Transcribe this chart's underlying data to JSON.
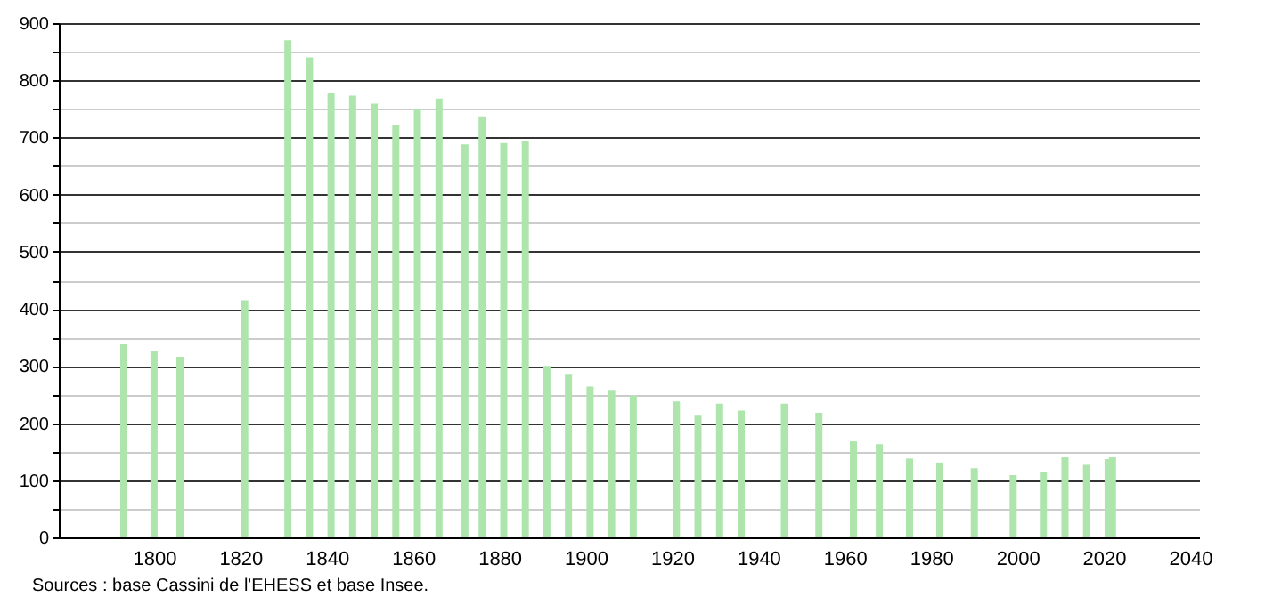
{
  "chart_data": {
    "type": "bar",
    "x": [
      1793,
      1800,
      1806,
      1821,
      1831,
      1836,
      1841,
      1846,
      1851,
      1856,
      1861,
      1866,
      1872,
      1876,
      1881,
      1886,
      1891,
      1896,
      1901,
      1906,
      1911,
      1921,
      1926,
      1931,
      1936,
      1946,
      1954,
      1962,
      1968,
      1975,
      1982,
      1990,
      1999,
      2006,
      2011,
      2016,
      2021,
      2022
    ],
    "values": [
      338,
      327,
      316,
      415,
      870,
      840,
      778,
      773,
      759,
      722,
      749,
      768,
      688,
      737,
      690,
      693,
      300,
      286,
      264,
      258,
      248,
      238,
      213,
      234,
      222,
      234,
      218,
      168,
      163,
      138,
      131,
      121,
      109,
      115,
      140,
      127,
      137,
      140
    ],
    "color": "#ade5ad",
    "xlim": [
      1780,
      2040
    ],
    "xticks": [
      1800,
      1820,
      1840,
      1860,
      1880,
      1900,
      1920,
      1940,
      1960,
      1980,
      2000,
      2020,
      2040
    ],
    "ylim": [
      0,
      900
    ],
    "yticks": [
      0,
      {
        "value": 50,
        "label": null
      },
      100,
      {
        "value": 150,
        "label": null
      },
      200,
      {
        "value": 250,
        "label": null
      },
      300,
      {
        "value": 350,
        "label": null
      },
      400,
      {
        "value": 450,
        "label": null
      },
      500,
      {
        "value": 550,
        "label": null
      },
      600,
      {
        "value": 650,
        "label": null
      },
      700,
      {
        "value": 750,
        "label": null
      },
      800,
      {
        "value": 850,
        "label": null
      },
      900
    ],
    "grid": "y",
    "annotations": [
      "Sources : base Cassini de l'EHESS et base Insee."
    ]
  }
}
